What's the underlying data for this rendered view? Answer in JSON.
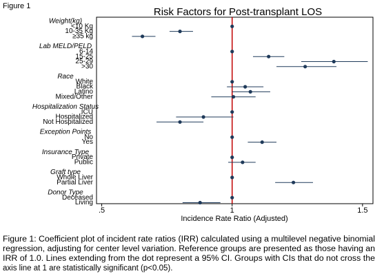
{
  "chart_data": {
    "type": "forest",
    "figure_label": "Figure 1",
    "title": "Risk Factors for Post-transplant LOS",
    "xlabel": "Incidence Rate Ratio (Adjusted)",
    "xlim": [
      0.48,
      1.54
    ],
    "xticks": [
      {
        "value": 0.5,
        "label": ".5"
      },
      1,
      1.5
    ],
    "ref_line": 1,
    "ref_color": "#c00000",
    "color": "#1f3a5a",
    "groups": [
      {
        "name": "Weight(kg)",
        "items": [
          {
            "label": "<10 Kg",
            "irr": 1,
            "lo": null,
            "hi": null
          },
          {
            "label": "10-35 Kg",
            "irr": 0.8,
            "lo": 0.76,
            "hi": 0.85
          },
          {
            "label": "≥35 kg",
            "irr": 0.656,
            "lo": 0.616,
            "hi": 0.706
          }
        ]
      },
      {
        "name": "Lab MELD/PELD",
        "items": [
          {
            "label": "6-14",
            "irr": 1,
            "lo": null,
            "hi": null
          },
          {
            "label": "15-25",
            "irr": 1.14,
            "lo": 1.08,
            "hi": 1.2
          },
          {
            "label": "25-29",
            "irr": 1.39,
            "lo": 1.265,
            "hi": 1.52
          },
          {
            "label": ">30",
            "irr": 1.28,
            "lo": 1.17,
            "hi": 1.4
          }
        ]
      },
      {
        "name": "Race",
        "items": [
          {
            "label": "White",
            "irr": 1,
            "lo": null,
            "hi": null
          },
          {
            "label": "Black",
            "irr": 1.05,
            "lo": 0.98,
            "hi": 1.12
          },
          {
            "label": "Latino",
            "irr": 1.07,
            "lo": 1.0,
            "hi": 1.146
          },
          {
            "label": "Mixed/Other",
            "irr": 1.005,
            "lo": 0.92,
            "hi": 1.09
          }
        ]
      },
      {
        "name": "Hospitalization Status",
        "items": [
          {
            "label": "ICU",
            "irr": 1,
            "lo": null,
            "hi": null
          },
          {
            "label": "Hospitalized",
            "irr": 0.89,
            "lo": 0.785,
            "hi": 1.005
          },
          {
            "label": "Not Hospitalized",
            "irr": 0.8,
            "lo": 0.71,
            "hi": 0.89
          }
        ]
      },
      {
        "name": "Exception Points",
        "items": [
          {
            "label": "No",
            "irr": 1,
            "lo": null,
            "hi": null
          },
          {
            "label": "Yes",
            "irr": 1.115,
            "lo": 1.06,
            "hi": 1.17
          }
        ]
      },
      {
        "name": "Insurance Type",
        "items": [
          {
            "label": "Private",
            "irr": 1,
            "lo": null,
            "hi": null
          },
          {
            "label": "Public",
            "irr": 1.04,
            "lo": 0.985,
            "hi": 1.09
          }
        ]
      },
      {
        "name": "Graft type",
        "items": [
          {
            "label": "Whole Liver",
            "irr": 1,
            "lo": null,
            "hi": null
          },
          {
            "label": "Partial Liver",
            "irr": 1.235,
            "lo": 1.165,
            "hi": 1.31
          }
        ]
      },
      {
        "name": "Donor Type",
        "items": [
          {
            "label": "Deceased",
            "irr": 1,
            "lo": null,
            "hi": null
          },
          {
            "label": "Living",
            "irr": 0.877,
            "lo": 0.81,
            "hi": 0.955
          }
        ]
      }
    ],
    "caption_lines": [
      "Figure 1: Coefficient plot of incident rate ratios (IRR) calculated using a multilevel negative binomial",
      "regression, adjusting for center level variation. Reference groups are presented as those having an",
      "IRR of 1.0. Lines extending from the dot represent a 95% CI. Groups with CIs that do not cross the",
      "axis line at 1 are statistically significant (p<0.05)."
    ]
  }
}
